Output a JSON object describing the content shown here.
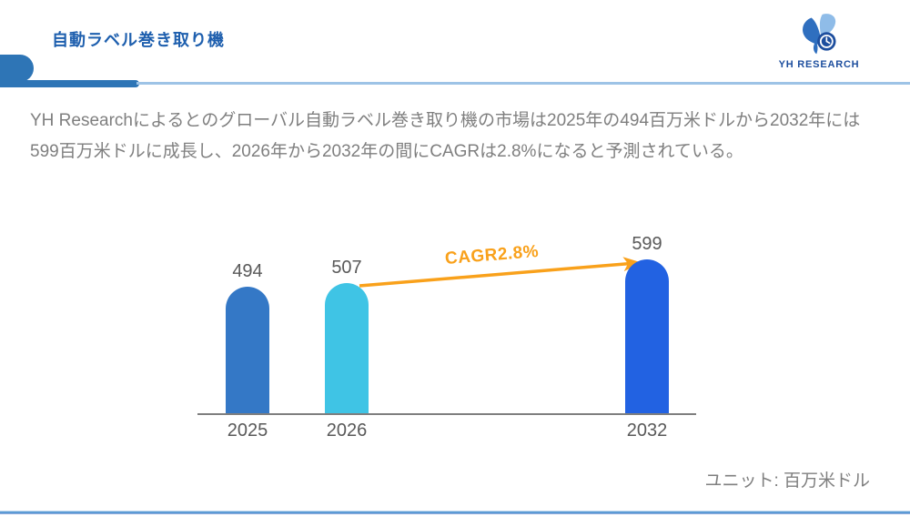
{
  "header": {
    "title": "自動ラベル巻き取り機",
    "logo_text": "YH RESEARCH"
  },
  "summary": "YH Researchによるとのグローバル自動ラベル巻き取り機の市場は2025年の494百万米ドルから2032年には599百万米ドルに成長し、2026年から2032年の間にCAGRは2.8%になると予測されている。",
  "chart_data": {
    "type": "bar",
    "categories": [
      "2025",
      "2026",
      "2032"
    ],
    "values": [
      494,
      507,
      599
    ],
    "bar_colors": [
      "#3478c6",
      "#3fc4e5",
      "#2262e2"
    ],
    "ylim": [
      0,
      640
    ],
    "grid": false,
    "axis_color": "#7f7f7f",
    "annotation": {
      "label": "CAGR2.8%",
      "color": "#f9a11b",
      "from_category": "2026",
      "to_category": "2032"
    },
    "unit_label": "ユニット: 百万米ドル"
  }
}
